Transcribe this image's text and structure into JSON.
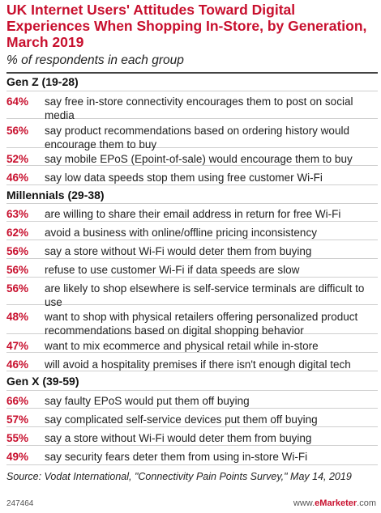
{
  "chart_data": {
    "type": "table",
    "title": "UK Internet Users' Attitudes Toward Digital Experiences When Shopping In-Store, by Generation, March 2019",
    "subtitle": "% of respondents in each group",
    "groups": [
      {
        "name": "Gen Z (19-28)",
        "rows": [
          {
            "value": "64%",
            "label": "say free in-store connectivity encourages them to post on social media"
          },
          {
            "value": "56%",
            "label": "say product recommendations based on ordering history would encourage them to buy"
          },
          {
            "value": "52%",
            "label": "say mobile EPoS (Epoint-of-sale) would encourage them to buy"
          },
          {
            "value": "46%",
            "label": "say low data speeds stop them using free customer Wi-Fi"
          }
        ]
      },
      {
        "name": "Millennials (29-38)",
        "rows": [
          {
            "value": "63%",
            "label": "are willing to share their email address in return for free Wi-Fi"
          },
          {
            "value": "62%",
            "label": "avoid a business with online/offline pricing inconsistency"
          },
          {
            "value": "56%",
            "label": "say a store without Wi-Fi would deter them from buying"
          },
          {
            "value": "56%",
            "label": "refuse to use customer Wi-Fi if data speeds are slow"
          },
          {
            "value": "56%",
            "label": "are likely to shop elsewhere is self-service terminals are difficult to use"
          },
          {
            "value": "48%",
            "label": "want to shop with physical retailers offering personalized product recommendations based on digital shopping behavior"
          },
          {
            "value": "47%",
            "label": "want to mix ecommerce and physical retail while in-store"
          },
          {
            "value": "46%",
            "label": "will avoid a hospitality premises if there isn't enough digital tech"
          }
        ]
      },
      {
        "name": "Gen X (39-59)",
        "rows": [
          {
            "value": "66%",
            "label": "say faulty EPoS would put them off buying"
          },
          {
            "value": "57%",
            "label": "say complicated self-service devices put them off buying"
          },
          {
            "value": "55%",
            "label": "say a store without Wi-Fi would deter them from buying"
          },
          {
            "value": "49%",
            "label": "say security fears deter them from using in-store Wi-Fi"
          }
        ]
      }
    ]
  },
  "source": "Source: Vodat International, \"Connectivity Pain Points Survey,\" May 14, 2019",
  "chart_id": "247464",
  "brand": {
    "prefix": "www.",
    "name": "eMarketer",
    "suffix": ".com"
  },
  "colors": {
    "accent": "#c8102e",
    "text": "#222222",
    "rule": "#cfcfcf"
  }
}
